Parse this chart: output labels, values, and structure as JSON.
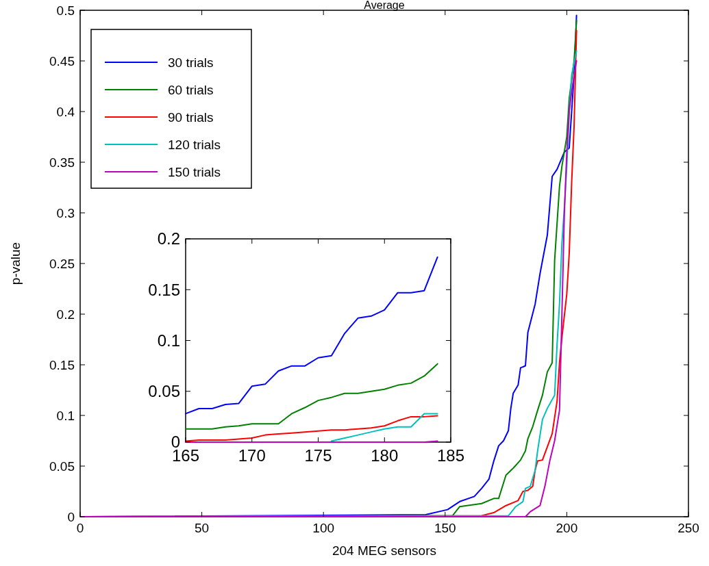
{
  "chart_data": [
    {
      "type": "line",
      "title": "Average",
      "xlabel": "204 MEG sensors",
      "ylabel": "p-value",
      "xlim": [
        0,
        250
      ],
      "xticks": [
        0,
        50,
        100,
        150,
        200,
        250
      ],
      "ylim": [
        0,
        0.5
      ],
      "yticks": [
        0,
        0.05,
        0.1,
        0.15,
        0.2,
        0.25,
        0.3,
        0.35,
        0.4,
        0.45,
        0.5
      ],
      "grid": false,
      "legend": "top left",
      "line_style": "solid",
      "marker": "none",
      "series": [
        {
          "name": "30 trials",
          "color": "#0000ff",
          "x": [
            1,
            142,
            151,
            156,
            162,
            165,
            168,
            170,
            172,
            174,
            176,
            177,
            178,
            180,
            181,
            183,
            184,
            187,
            189,
            192,
            194,
            196,
            199,
            201,
            202,
            203,
            204
          ],
          "values": [
            0,
            0.002,
            0.007,
            0.015,
            0.02,
            0.028,
            0.037,
            0.055,
            0.07,
            0.075,
            0.085,
            0.107,
            0.122,
            0.13,
            0.147,
            0.149,
            0.182,
            0.21,
            0.24,
            0.278,
            0.336,
            0.343,
            0.36,
            0.364,
            0.4,
            0.436,
            0.495
          ]
        },
        {
          "name": "60 trials",
          "color": "#008000",
          "x": [
            1,
            153,
            156,
            165,
            170,
            172,
            175,
            178,
            181,
            183,
            184,
            186,
            188,
            190,
            192,
            194,
            195,
            197,
            198,
            200,
            201,
            203,
            204
          ],
          "values": [
            0,
            0.001,
            0.01,
            0.013,
            0.018,
            0.018,
            0.041,
            0.048,
            0.056,
            0.065,
            0.077,
            0.089,
            0.105,
            0.12,
            0.143,
            0.152,
            0.253,
            0.326,
            0.346,
            0.375,
            0.413,
            0.45,
            0.49
          ]
        },
        {
          "name": "90 trials",
          "color": "#ff0000",
          "x": [
            1,
            165,
            170,
            175,
            180,
            182,
            184,
            186,
            187,
            188,
            190,
            192,
            194,
            196,
            197,
            198,
            200,
            201,
            202,
            203,
            204
          ],
          "values": [
            0,
            0.001,
            0.004,
            0.011,
            0.016,
            0.025,
            0.026,
            0.03,
            0.046,
            0.055,
            0.056,
            0.069,
            0.082,
            0.114,
            0.152,
            0.177,
            0.22,
            0.26,
            0.33,
            0.386,
            0.48
          ]
        },
        {
          "name": "120 trials",
          "color": "#00bfbf",
          "x": [
            1,
            176,
            179,
            182,
            183,
            185,
            187,
            188,
            190,
            192,
            195,
            196,
            197,
            198,
            199,
            200,
            201,
            202,
            204
          ],
          "values": [
            0,
            0.001,
            0.01,
            0.015,
            0.028,
            0.03,
            0.046,
            0.065,
            0.096,
            0.107,
            0.12,
            0.17,
            0.21,
            0.27,
            0.305,
            0.346,
            0.4,
            0.436,
            0.46
          ]
        },
        {
          "name": "150 trials",
          "color": "#bf00bf",
          "x": [
            1,
            183,
            185,
            189,
            191,
            193,
            195,
            197,
            198,
            199,
            200,
            201,
            202,
            203,
            204
          ],
          "values": [
            0,
            0,
            0.005,
            0.011,
            0.03,
            0.055,
            0.075,
            0.105,
            0.2,
            0.3,
            0.36,
            0.4,
            0.42,
            0.436,
            0.45
          ]
        }
      ]
    },
    {
      "type": "line",
      "xlim": [
        165,
        185
      ],
      "xticks": [
        165,
        170,
        175,
        180,
        185
      ],
      "ylim": [
        0,
        0.2
      ],
      "yticks": [
        0,
        0.05,
        0.1,
        0.15,
        0.2
      ],
      "grid": false,
      "legend": false,
      "line_style": "solid",
      "marker": "none",
      "series": [
        {
          "color": "#0000ff",
          "x": [
            165,
            166,
            167,
            168,
            169,
            170,
            171,
            172,
            173,
            174,
            175,
            176,
            177,
            178,
            179,
            180,
            181,
            182,
            183,
            184
          ],
          "values": [
            0.028,
            0.033,
            0.033,
            0.037,
            0.038,
            0.055,
            0.057,
            0.07,
            0.075,
            0.075,
            0.083,
            0.085,
            0.107,
            0.122,
            0.124,
            0.13,
            0.147,
            0.147,
            0.149,
            0.182
          ]
        },
        {
          "color": "#008000",
          "x": [
            165,
            166,
            167,
            168,
            169,
            170,
            171,
            172,
            173,
            174,
            175,
            176,
            177,
            178,
            179,
            180,
            181,
            182,
            183,
            184
          ],
          "values": [
            0.013,
            0.013,
            0.013,
            0.015,
            0.016,
            0.018,
            0.018,
            0.018,
            0.028,
            0.034,
            0.041,
            0.044,
            0.048,
            0.048,
            0.05,
            0.052,
            0.056,
            0.058,
            0.065,
            0.077
          ]
        },
        {
          "color": "#ff0000",
          "x": [
            165,
            166,
            167,
            168,
            169,
            170,
            171,
            172,
            173,
            174,
            175,
            176,
            177,
            178,
            179,
            180,
            181,
            182,
            183,
            184
          ],
          "values": [
            0.001,
            0.002,
            0.002,
            0.002,
            0.003,
            0.004,
            0.007,
            0.008,
            0.009,
            0.01,
            0.011,
            0.012,
            0.012,
            0.013,
            0.014,
            0.016,
            0.021,
            0.025,
            0.025,
            0.026
          ]
        },
        {
          "color": "#00bfbf",
          "x": [
            176,
            177,
            178,
            179,
            180,
            181,
            182,
            183,
            184
          ],
          "values": [
            0.001,
            0.004,
            0.007,
            0.01,
            0.013,
            0.015,
            0.015,
            0.028,
            0.028
          ]
        },
        {
          "color": "#bf00bf",
          "x": [
            165,
            183,
            184
          ],
          "values": [
            0,
            0,
            0.001
          ]
        }
      ]
    }
  ]
}
